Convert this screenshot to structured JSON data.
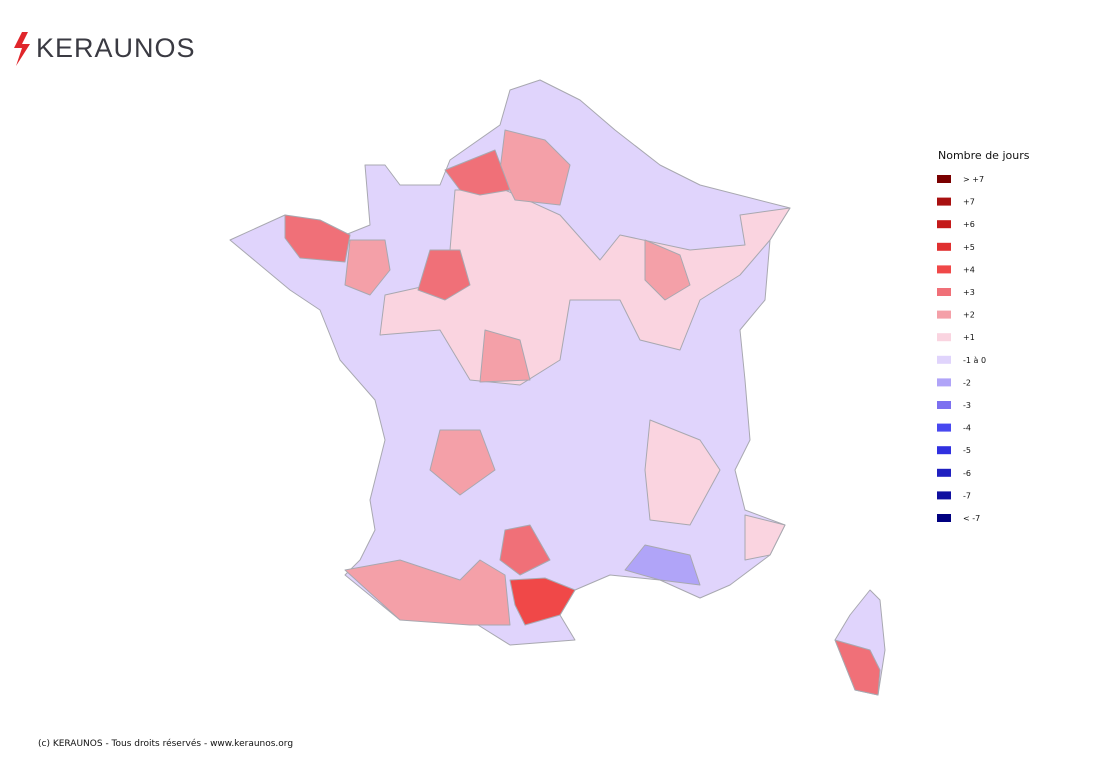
{
  "header": {
    "logo": "KERAUNOS"
  },
  "legend": {
    "title": "Nombre de jours",
    "items": [
      {
        "label": "> +7",
        "color": "#7a0000"
      },
      {
        "label": "+7",
        "color": "#a81010"
      },
      {
        "label": "+6",
        "color": "#c41a1a"
      },
      {
        "label": "+5",
        "color": "#e03030"
      },
      {
        "label": "+4",
        "color": "#f04848"
      },
      {
        "label": "+3",
        "color": "#f07078"
      },
      {
        "label": "+2",
        "color": "#f4a0a8"
      },
      {
        "label": "+1",
        "color": "#fad4e0"
      },
      {
        "label": "-1 à 0",
        "color": "#e0d4fc"
      },
      {
        "label": "-2",
        "color": "#b0a4f8"
      },
      {
        "label": "-3",
        "color": "#7c70f0"
      },
      {
        "label": "-4",
        "color": "#4848f0"
      },
      {
        "label": "-5",
        "color": "#3030e0"
      },
      {
        "label": "-6",
        "color": "#2020c0"
      },
      {
        "label": "-7",
        "color": "#1010a0"
      },
      {
        "label": "< -7",
        "color": "#000080"
      }
    ]
  },
  "footer": {
    "copyright": "(c) KERAUNOS - Tous droits réservés - www.keraunos.org"
  }
}
